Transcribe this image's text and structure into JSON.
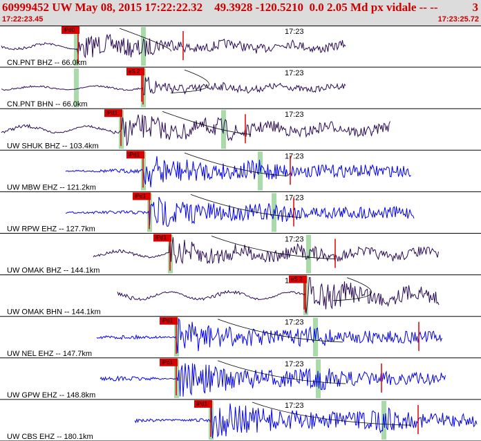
{
  "header": {
    "title": "60999452 UW May 08, 2015 17:22:22.32    49.3928 -120.5210  0.0 2.05 Md px vidale -- --",
    "page_count": "3",
    "start_time": "17:22:23.45",
    "end_time": "17:23:25.72"
  },
  "colors": {
    "header_text": "#cc0000",
    "pick": "#dd0000",
    "velocity_trace": "#0000ee",
    "short_period_trace": "#2a0a55",
    "window": "#a8dba8"
  },
  "minute_marker": "17:23",
  "traces": [
    {
      "label": "CN.PNT BHZ -- 66.0km",
      "pick": "iPd0",
      "type": "short_period"
    },
    {
      "label": "CN.PNT BHN -- 66.0km",
      "pick": "eS 2",
      "type": "short_period"
    },
    {
      "label": "UW SHUK BHZ -- 103.4km",
      "pick": "iPd1",
      "type": "short_period"
    },
    {
      "label": "UW MBW EHZ -- 121.2km",
      "pick": "iPd1",
      "type": "velocity"
    },
    {
      "label": "UW RPW EHZ -- 127.7km",
      "pick": "iPd1",
      "type": "velocity"
    },
    {
      "label": "UW OMAK BHZ -- 144.1km",
      "pick": "iPd1",
      "type": "short_period"
    },
    {
      "label": "UW OMAK BHN -- 144.1km",
      "pick": "eS 2",
      "type": "short_period"
    },
    {
      "label": "UW NEL EHZ -- 147.7km",
      "pick": "iPd1",
      "type": "velocity"
    },
    {
      "label": "UW GPW EHZ -- 148.8km",
      "pick": "iPd1",
      "type": "velocity"
    },
    {
      "label": "UW CBS EHZ -- 180.1km",
      "pick": "iPd1",
      "type": "velocity"
    }
  ]
}
